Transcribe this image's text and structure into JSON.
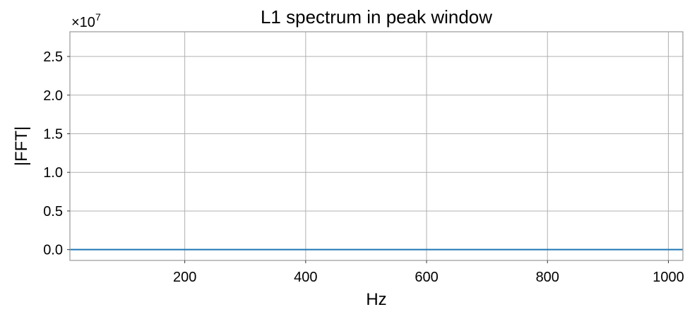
{
  "chart_data": {
    "type": "line",
    "title": "L1 spectrum in peak window",
    "xlabel": "Hz",
    "ylabel": "|FFT|",
    "y_offset_label": {
      "base": "×10",
      "exponent": "7"
    },
    "xlim": [
      10,
      1024
    ],
    "ylim": [
      -0.14,
      2.82
    ],
    "y_scale_factor": 10000000,
    "xticks": [
      200,
      400,
      600,
      800,
      1000
    ],
    "xtick_labels": [
      "200",
      "400",
      "600",
      "800",
      "1000"
    ],
    "yticks": [
      0.0,
      0.5,
      1.0,
      1.5,
      2.0,
      2.5
    ],
    "ytick_labels": [
      "0.0",
      "0.5",
      "1.0",
      "1.5",
      "2.0",
      "2.5"
    ],
    "grid": true,
    "series": [
      {
        "color": "#1f77b4",
        "x": [
          10,
          1024
        ],
        "y": [
          0.0,
          0.0
        ]
      }
    ],
    "colors": {
      "line": "#1f77b4",
      "grid": "#b0b0b0",
      "frame": "#999999"
    }
  }
}
